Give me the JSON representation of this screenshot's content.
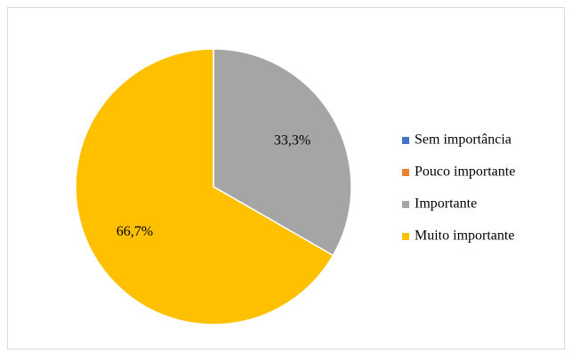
{
  "chart_data": {
    "type": "pie",
    "categories": [
      "Sem importância",
      "Pouco importante",
      "Importante",
      "Muito importante"
    ],
    "values": [
      0,
      0,
      33.3,
      66.7
    ],
    "value_labels": [
      null,
      null,
      "33,3%",
      "66,7%"
    ],
    "colors": [
      "#4472c4",
      "#ed7d31",
      "#a5a5a5",
      "#ffc000"
    ],
    "legend": "right"
  }
}
